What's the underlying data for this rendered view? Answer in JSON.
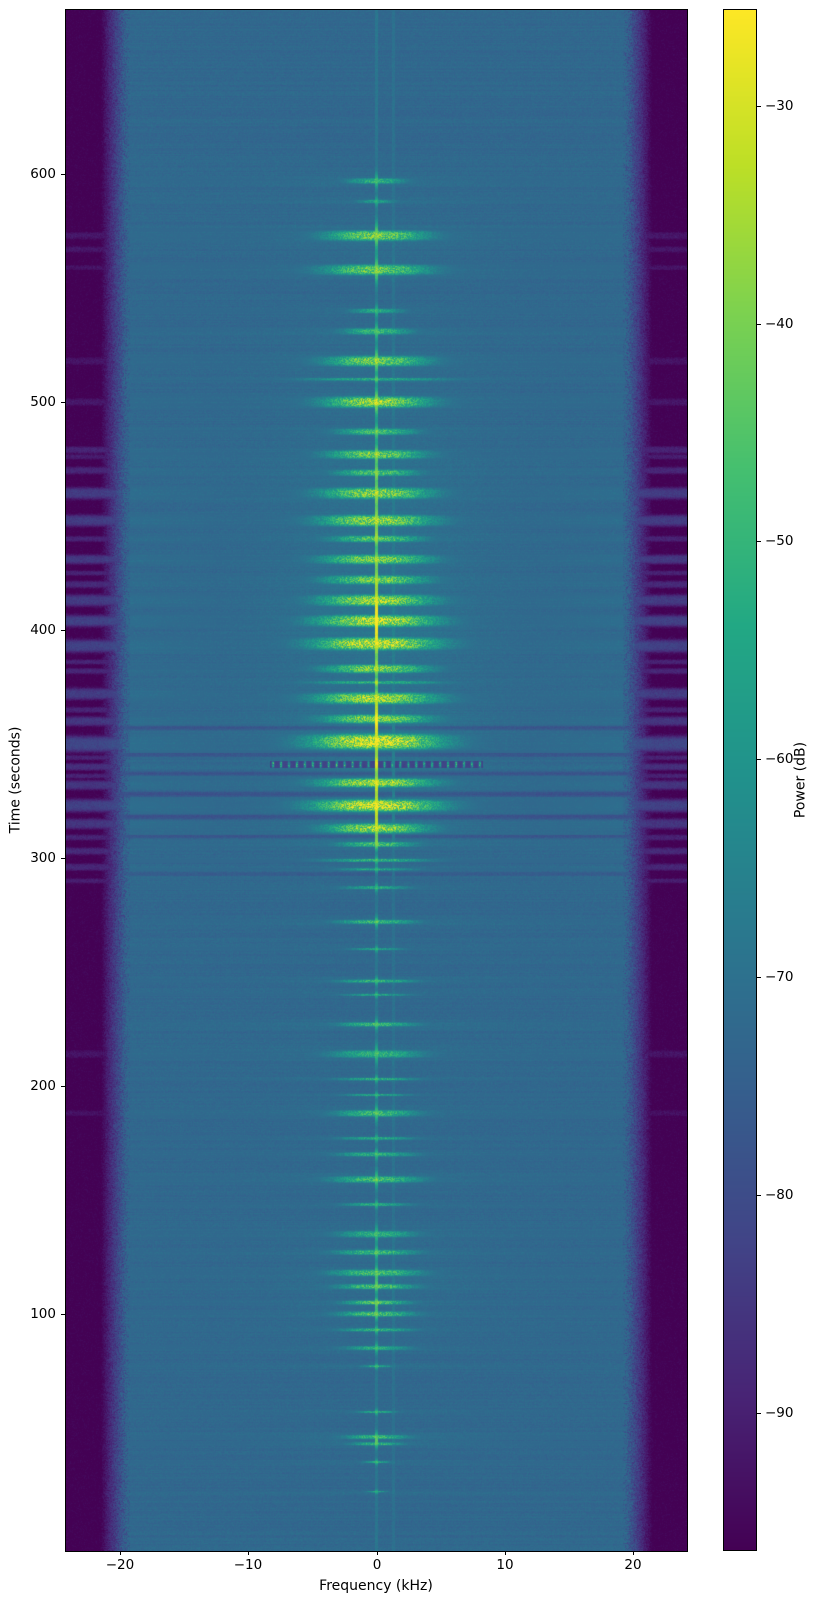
{
  "axes": {
    "xlabel": "Frequency (kHz)",
    "ylabel": "Time (seconds)",
    "xticks": [
      -20,
      -10,
      0,
      10,
      20
    ],
    "yticks": [
      100,
      200,
      300,
      400,
      500,
      600
    ],
    "xlim": [
      -24.2,
      24.2
    ],
    "ylim": [
      -4,
      672
    ]
  },
  "colorbar": {
    "label": "Power (dB)",
    "ticks": [
      -30,
      -40,
      -50,
      -60,
      -70,
      -80,
      -90
    ],
    "vmin": -96.3,
    "vmax": -25.6
  },
  "chart_data": {
    "type": "heatmap",
    "title": "",
    "xlabel": "Frequency (kHz)",
    "ylabel": "Time (seconds)",
    "zlabel": "Power (dB)",
    "colormap": "viridis",
    "xlim": [
      -24.2,
      24.2
    ],
    "ylim": [
      0,
      670
    ],
    "clim": [
      -96.3,
      -25.6
    ],
    "colormap_stops": [
      [
        68,
        1,
        84
      ],
      [
        72,
        36,
        117
      ],
      [
        65,
        68,
        135
      ],
      [
        53,
        95,
        141
      ],
      [
        42,
        120,
        142
      ],
      [
        33,
        145,
        140
      ],
      [
        34,
        168,
        132
      ],
      [
        68,
        191,
        112
      ],
      [
        122,
        209,
        81
      ],
      [
        189,
        223,
        38
      ],
      [
        253,
        231,
        37
      ]
    ],
    "render": {
      "floor_db": -72.5,
      "noise_sigma_db": 2.2,
      "edge_start": 19.2,
      "edge_width": 2.3,
      "edge_drop_db": 26,
      "hump_gain_db": 3.5,
      "hump_sigma2": 60
    },
    "carriers": [
      {
        "f": 0.0,
        "base_db": -68.5,
        "act_gain": 36
      },
      {
        "f": 1.35,
        "base_db": -69.8,
        "act_gain": 4
      }
    ],
    "bursts_format": [
      "t_s",
      "half_dur_s",
      "half_bw_khz",
      "peak_db",
      "dash_spacing_khz"
    ],
    "bursts": [
      [
        597,
        1.2,
        2.2,
        -50,
        0
      ],
      [
        588,
        0.8,
        1.5,
        -56,
        0
      ],
      [
        573,
        2.2,
        4.0,
        -40,
        0
      ],
      [
        558,
        2.2,
        4.2,
        -41,
        0
      ],
      [
        540,
        1.0,
        2.0,
        -53,
        0
      ],
      [
        531,
        1.4,
        2.6,
        -48,
        0
      ],
      [
        518,
        2.2,
        4.0,
        -40,
        0
      ],
      [
        510,
        0.6,
        5.5,
        -52,
        0
      ],
      [
        500,
        2.4,
        4.2,
        -36,
        0
      ],
      [
        487,
        1.4,
        3.0,
        -46,
        0
      ],
      [
        477,
        1.9,
        3.8,
        -40,
        0
      ],
      [
        469,
        1.4,
        3.2,
        -45,
        0
      ],
      [
        460,
        2.4,
        4.3,
        -37,
        0
      ],
      [
        448,
        2.4,
        4.5,
        -36,
        0
      ],
      [
        440,
        1.4,
        3.5,
        -43,
        0
      ],
      [
        431,
        2.0,
        4.2,
        -38,
        0
      ],
      [
        422,
        1.9,
        4.0,
        -40,
        0
      ],
      [
        413,
        2.4,
        4.5,
        -35,
        0
      ],
      [
        404,
        2.5,
        4.8,
        -32,
        0
      ],
      [
        394,
        2.7,
        5.0,
        -31,
        0
      ],
      [
        383,
        1.8,
        4.0,
        -38,
        0
      ],
      [
        377,
        0.6,
        5.0,
        -50,
        0
      ],
      [
        370,
        2.4,
        4.8,
        -34,
        0
      ],
      [
        361,
        1.9,
        4.2,
        -38,
        0
      ],
      [
        351,
        3.3,
        5.2,
        -28,
        0
      ],
      [
        341,
        1.4,
        8.3,
        -40,
        0.62
      ],
      [
        333,
        1.9,
        4.5,
        -34,
        0
      ],
      [
        323,
        2.6,
        5.0,
        -29,
        0
      ],
      [
        313,
        2.1,
        4.0,
        -36,
        0
      ],
      [
        306,
        1.1,
        3.0,
        -46,
        0
      ],
      [
        299,
        0.7,
        4.0,
        -50,
        0
      ],
      [
        295,
        0.5,
        3.0,
        -53,
        0
      ],
      [
        287,
        0.7,
        2.5,
        -53,
        0
      ],
      [
        272,
        0.9,
        3.0,
        -48,
        0
      ],
      [
        260,
        0.5,
        2.0,
        -55,
        0
      ],
      [
        246,
        0.7,
        3.0,
        -50,
        0
      ],
      [
        240,
        0.5,
        2.5,
        -54,
        0
      ],
      [
        227,
        0.9,
        3.0,
        -48,
        0
      ],
      [
        214,
        1.6,
        3.5,
        -50,
        0
      ],
      [
        203,
        0.6,
        3.0,
        -52,
        0
      ],
      [
        196,
        0.5,
        2.5,
        -54,
        0
      ],
      [
        188,
        1.4,
        3.2,
        -48,
        0
      ],
      [
        177,
        0.6,
        2.8,
        -52,
        0
      ],
      [
        170,
        0.9,
        3.0,
        -51,
        0
      ],
      [
        159,
        1.4,
        3.5,
        -47,
        0
      ],
      [
        148,
        0.7,
        2.5,
        -52,
        0
      ],
      [
        135,
        1.4,
        3.0,
        -51,
        0
      ],
      [
        127,
        1.1,
        3.2,
        -48,
        0
      ],
      [
        118,
        1.4,
        3.5,
        -46,
        0
      ],
      [
        112,
        1.1,
        3.0,
        -45,
        0
      ],
      [
        105,
        0.9,
        2.5,
        -43,
        0
      ],
      [
        100,
        1.1,
        3.0,
        -45,
        0
      ],
      [
        93,
        0.7,
        2.8,
        -50,
        0
      ],
      [
        85,
        0.9,
        2.5,
        -52,
        0
      ],
      [
        77,
        0.45,
        1.2,
        -50,
        0
      ],
      [
        57,
        0.5,
        1.5,
        -53,
        0
      ],
      [
        46,
        0.9,
        2.5,
        -48,
        0
      ],
      [
        43,
        0.7,
        2.0,
        -50,
        0
      ],
      [
        35,
        0.45,
        1.0,
        -53,
        0
      ],
      [
        22,
        0.35,
        0.8,
        -55,
        0
      ]
    ],
    "edge_stripes_format": [
      "t_s",
      "half_dur_s",
      "amplitude"
    ],
    "edge_stripes": [
      [
        479,
        1.5,
        0.5
      ],
      [
        476,
        1.0,
        0.4
      ],
      [
        470,
        1.5,
        0.55
      ],
      [
        460,
        2.5,
        0.9
      ],
      [
        448,
        2.5,
        0.9
      ],
      [
        440,
        1.2,
        0.5
      ],
      [
        431,
        2.0,
        0.85
      ],
      [
        425,
        1.0,
        0.5
      ],
      [
        420,
        1.5,
        0.6
      ],
      [
        413,
        2.5,
        0.9
      ],
      [
        404,
        2.5,
        1.0
      ],
      [
        393,
        2.8,
        1.0
      ],
      [
        386,
        1.0,
        0.5
      ],
      [
        382,
        1.2,
        0.55
      ],
      [
        372,
        2.5,
        0.9
      ],
      [
        365,
        1.2,
        0.5
      ],
      [
        360,
        2.0,
        0.8
      ],
      [
        350,
        3.5,
        1.1
      ],
      [
        344,
        1.0,
        0.5
      ],
      [
        340,
        1.5,
        0.7
      ],
      [
        336,
        1.0,
        0.5
      ],
      [
        332,
        2.0,
        0.8
      ],
      [
        323,
        2.8,
        1.0
      ],
      [
        315,
        2.2,
        0.8
      ],
      [
        309,
        1.2,
        0.5
      ],
      [
        303,
        1.5,
        0.6
      ],
      [
        296,
        1.5,
        0.55
      ],
      [
        290,
        1.0,
        0.4
      ],
      [
        573,
        1.5,
        0.3
      ],
      [
        567,
        1.2,
        0.3
      ],
      [
        559,
        1.0,
        0.25
      ],
      [
        518,
        1.5,
        0.25
      ],
      [
        500,
        1.5,
        0.3
      ],
      [
        214,
        1.5,
        0.25
      ],
      [
        188,
        1.2,
        0.2
      ]
    ],
    "dark_rows_format": [
      "t_s",
      "half_dur_s",
      "delta_db"
    ],
    "dark_rows": [
      [
        357,
        1.0,
        -5
      ],
      [
        345.5,
        1.2,
        -6
      ],
      [
        337,
        1.0,
        -6
      ],
      [
        328,
        1.2,
        -6
      ],
      [
        318,
        1.2,
        -6
      ],
      [
        309.5,
        1.0,
        -5
      ],
      [
        298.5,
        0.8,
        -4
      ],
      [
        293,
        0.8,
        -4
      ]
    ]
  }
}
